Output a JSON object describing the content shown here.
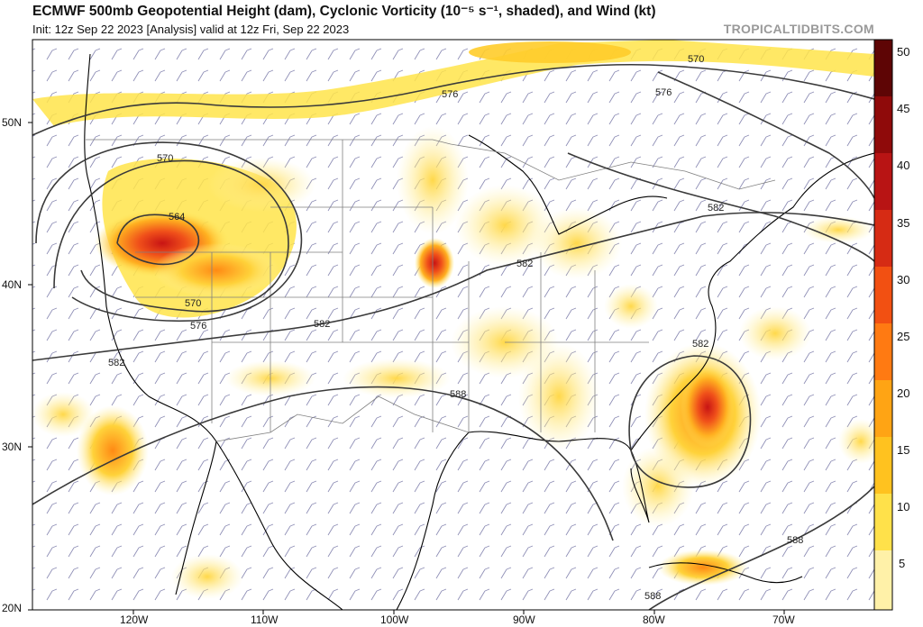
{
  "header": {
    "title": "ECMWF 500mb Geopotential Height (dam), Cyclonic Vorticity (10⁻⁵ s⁻¹, shaded), and Wind (kt)",
    "subtitle": "Init: 12z Sep 22 2023   [Analysis]   valid at 12z Fri, Sep 22 2023",
    "brand": "TROPICALTIDBITS.COM"
  },
  "map": {
    "lat_labels": [
      "50N",
      "40N",
      "30N",
      "20N"
    ],
    "lon_labels": [
      "120W",
      "110W",
      "100W",
      "90W",
      "80W",
      "70W"
    ],
    "contour_labels": [
      "570",
      "564",
      "570",
      "576",
      "576",
      "570",
      "576",
      "582",
      "582",
      "582",
      "582",
      "588",
      "582",
      "588",
      "588"
    ],
    "colorbar": {
      "ticks": [
        "50",
        "45",
        "40",
        "35",
        "30",
        "25",
        "20",
        "15",
        "10",
        "5"
      ],
      "colors": [
        "#fff1a8",
        "#ffe14a",
        "#ffc21f",
        "#ffa414",
        "#ff7a12",
        "#f25012",
        "#d62b14",
        "#b81414",
        "#8f0a0a",
        "#5e0505"
      ]
    },
    "colors": {
      "land_line": "#000000",
      "contour": "#3a3a3a",
      "barb": "#6a6a9e",
      "border": "#808080"
    }
  }
}
